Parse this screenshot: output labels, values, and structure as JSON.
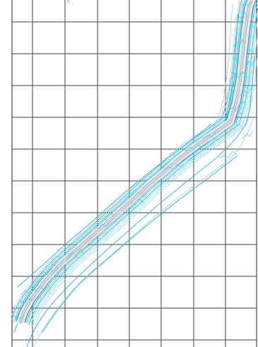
{
  "map": {
    "style": "contour map",
    "colors": {
      "background": "#ffffff",
      "grid": "#3f3f3f",
      "contour": "#3bb6d8",
      "contour_light": "#7fd2ea",
      "contour_dark": "#1497c3",
      "centerline": "#c7b7bf"
    },
    "elements": {
      "top_mark": "0"
    }
  }
}
